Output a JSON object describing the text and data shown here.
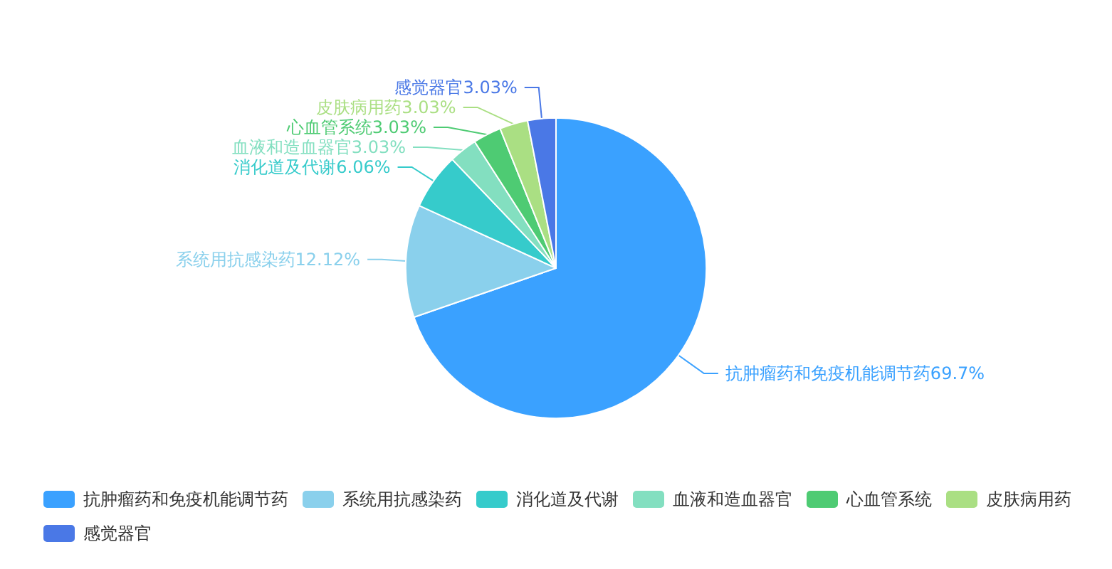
{
  "chart_data": {
    "type": "pie",
    "categories": [
      "抗肿瘤药和免疫机能调节药",
      "系统用抗感染药",
      "消化道及代谢",
      "血液和造血器官",
      "心血管系统",
      "皮肤病用药",
      "感觉器官"
    ],
    "values": [
      69.7,
      12.12,
      6.06,
      3.03,
      3.03,
      3.03,
      3.03
    ],
    "colors": [
      "#3aa1ff",
      "#8ad0ec",
      "#36cbcb",
      "#83dfc0",
      "#4ecb73",
      "#aadf83",
      "#4a78e6"
    ],
    "value_labels": [
      "69.7%",
      "12.12%",
      "6.06%",
      "3.03%",
      "3.03%",
      "3.03%",
      "3.03%"
    ],
    "legend": "bottom"
  }
}
